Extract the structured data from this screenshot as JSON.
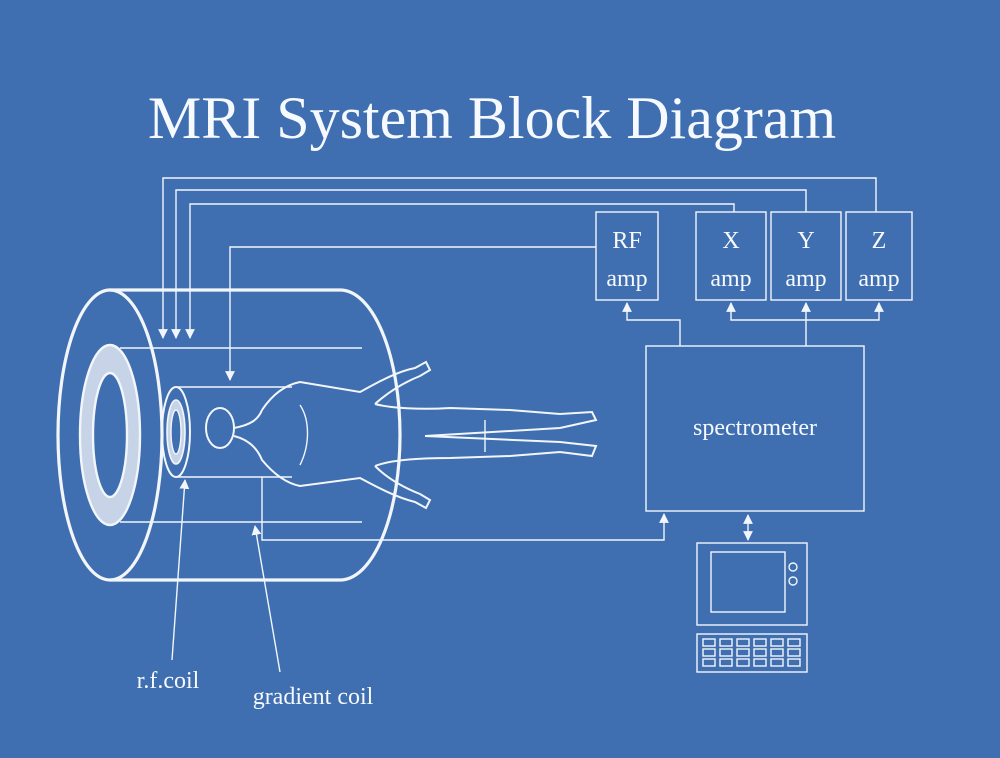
{
  "title": "MRI System Block Diagram",
  "blocks": {
    "rf_amp": [
      "RF",
      "amp"
    ],
    "x_amp": [
      "X",
      "amp"
    ],
    "y_amp": [
      "Y",
      "amp"
    ],
    "z_amp": [
      "Z",
      "amp"
    ],
    "spectrometer": "spectrometer"
  },
  "labels": {
    "rf_coil": "r.f.coil",
    "gradient_coil": "gradient coil"
  },
  "colors": {
    "background": "#3f6fb0",
    "line": "#f2f6fb",
    "magnet_ring": "#c7d3e6"
  }
}
